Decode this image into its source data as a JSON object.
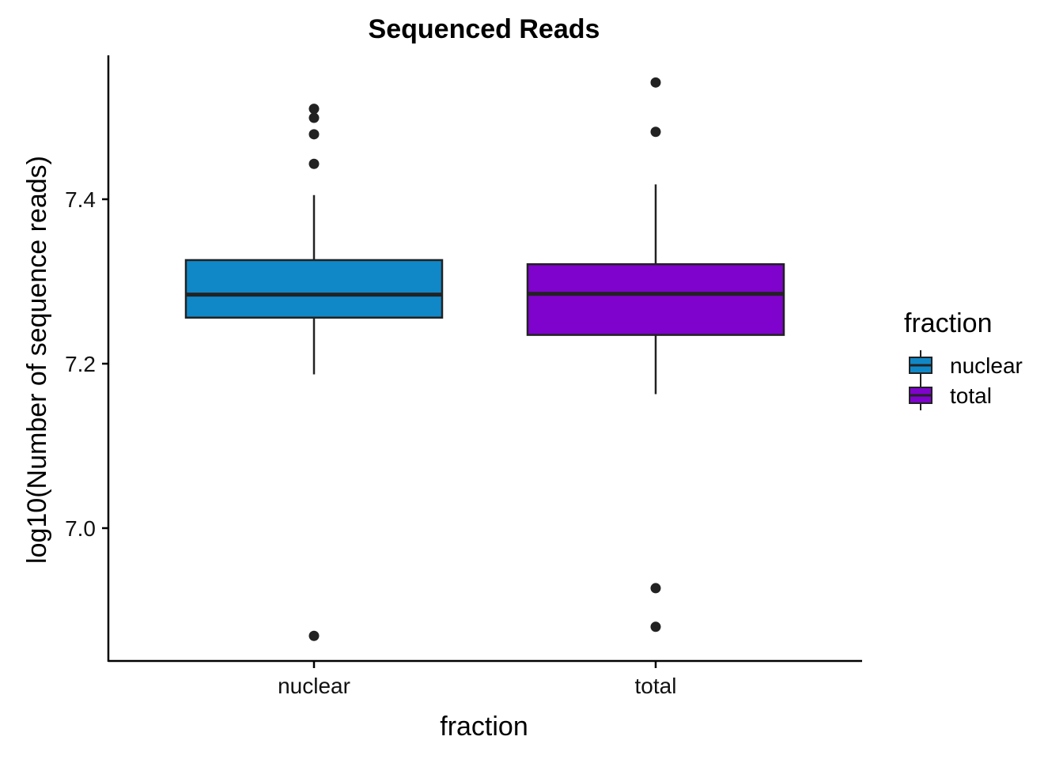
{
  "chart_data": {
    "type": "box",
    "title": "Sequenced Reads",
    "xlabel": "fraction",
    "ylabel": "log10(Number of sequence reads)",
    "categories": [
      "nuclear",
      "total"
    ],
    "ylim": [
      6.84,
      7.57
    ],
    "yticks": [
      7.0,
      7.2,
      7.4
    ],
    "ytick_labels": [
      "7.0",
      "7.2",
      "7.4"
    ],
    "grid": false,
    "legend": {
      "title": "fraction",
      "position": "right",
      "entries": [
        "nuclear",
        "total"
      ]
    },
    "series": [
      {
        "category": "nuclear",
        "color": "#1088c8",
        "whisker_low": 7.187,
        "q1": 7.256,
        "median": 7.284,
        "q3": 7.326,
        "whisker_high": 7.405,
        "outliers": [
          7.51,
          7.499,
          7.479,
          7.443,
          6.869
        ]
      },
      {
        "category": "total",
        "color": "#7f03cc",
        "whisker_low": 7.163,
        "q1": 7.235,
        "median": 7.285,
        "q3": 7.321,
        "whisker_high": 7.418,
        "outliers": [
          7.542,
          7.482,
          6.927,
          6.88
        ]
      }
    ]
  }
}
